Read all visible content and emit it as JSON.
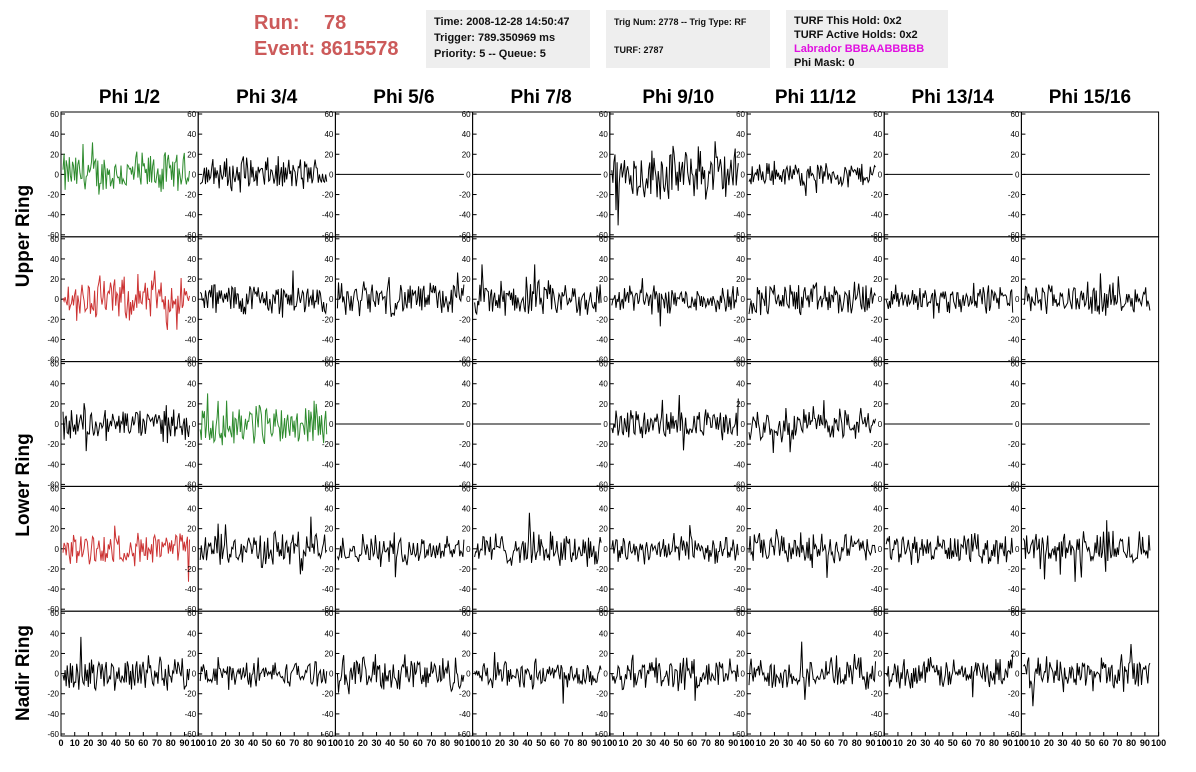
{
  "header": {
    "run_label": "Run:",
    "run_value": "78",
    "event_label": "Event:",
    "event_value": "8615578",
    "time": "Time: 2008-12-28 14:50:47",
    "trigger": "Trigger: 789.350969 ms",
    "priority": "Priority: 5 -- Queue: 5",
    "trig_num": "Trig Num: 2778 -- Trig Type: RF",
    "turf": "TURF: 2787",
    "turf_this_hold": "TURF This Hold: 0x2",
    "turf_active_holds": "TURF Active Holds: 0x2",
    "labrador": "Labrador BBBAABBBBB",
    "phi_mask": "Phi Mask: 0"
  },
  "columns": [
    "Phi 1/2",
    "Phi 3/4",
    "Phi 5/6",
    "Phi 7/8",
    "Phi 9/10",
    "Phi 11/12",
    "Phi 13/14",
    "Phi 15/16"
  ],
  "rings": [
    "Upper Ring",
    "Lower Ring",
    "Nadir Ring"
  ],
  "y_ticks": [
    "60",
    "40",
    "20",
    "0",
    "-20",
    "-40",
    "-60"
  ],
  "x_ticks": [
    "0",
    "10",
    "20",
    "30",
    "40",
    "50",
    "60",
    "70",
    "80",
    "90",
    "100"
  ],
  "colors": {
    "green": "#2e8b2e",
    "red": "#cc3333",
    "black": "#000000"
  },
  "chart_data": {
    "type": "line",
    "ylim": [
      -60,
      60
    ],
    "xlim": [
      0,
      100
    ],
    "rows": 5,
    "panels": [
      [
        "green",
        "black",
        "flat",
        "flat",
        "black",
        "black",
        "flat",
        "flat"
      ],
      [
        "red",
        "black",
        "black",
        "black",
        "black",
        "black",
        "black",
        "black"
      ],
      [
        "black",
        "green",
        "flat",
        "flat",
        "black",
        "black",
        "flat",
        "flat"
      ],
      [
        "red",
        "black",
        "black",
        "black",
        "black",
        "black",
        "black",
        "black"
      ],
      [
        "black",
        "black",
        "black",
        "black",
        "black",
        "black",
        "black",
        "black"
      ]
    ],
    "amplitude": [
      [
        18,
        14,
        0,
        0,
        22,
        10,
        0,
        0
      ],
      [
        18,
        14,
        14,
        15,
        12,
        14,
        12,
        13
      ],
      [
        14,
        18,
        0,
        0,
        12,
        14,
        0,
        0
      ],
      [
        13,
        15,
        13,
        14,
        12,
        13,
        12,
        15
      ],
      [
        14,
        10,
        15,
        12,
        14,
        13,
        13,
        14
      ]
    ]
  }
}
